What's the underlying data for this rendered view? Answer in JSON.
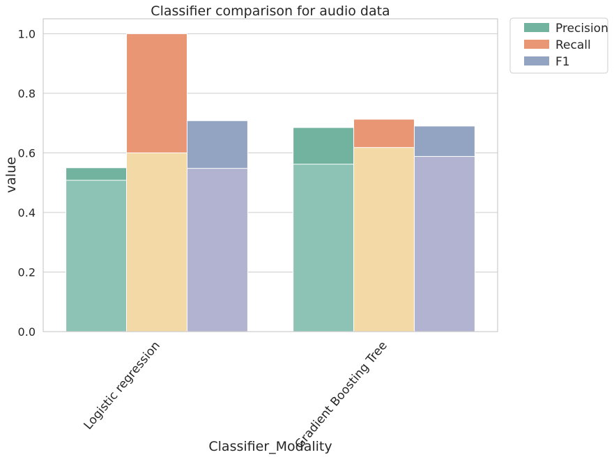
{
  "chart_data": {
    "type": "bar",
    "title": "Classifier comparison for audio data",
    "xlabel": "Classifier_Modality",
    "ylabel": "value",
    "ylim": [
      0,
      1.05
    ],
    "yticks": [
      0.0,
      0.2,
      0.4,
      0.6,
      0.8,
      1.0
    ],
    "ytick_labels": [
      "0.0",
      "0.2",
      "0.4",
      "0.6",
      "0.8",
      "1.0"
    ],
    "categories": [
      "Logistic regression",
      "Gradient Boosting Tree"
    ],
    "grid": true,
    "legend_position": "outside-top-right",
    "series": [
      {
        "name": "Precision",
        "color": "#71b39e",
        "values": [
          0.55,
          0.685
        ]
      },
      {
        "name": "Recall",
        "color": "#e89674",
        "values": [
          1.0,
          0.713
        ]
      },
      {
        "name": "F1",
        "color": "#93a4c3",
        "values": [
          0.708,
          0.69
        ]
      }
    ],
    "overlay_series": [
      {
        "color": "#8cc3b4",
        "values": [
          0.508,
          0.562
        ]
      },
      {
        "color": "#f2d9a6",
        "values": [
          0.6,
          0.618
        ]
      },
      {
        "color": "#b1b3d0",
        "values": [
          0.548,
          0.588
        ]
      }
    ]
  }
}
